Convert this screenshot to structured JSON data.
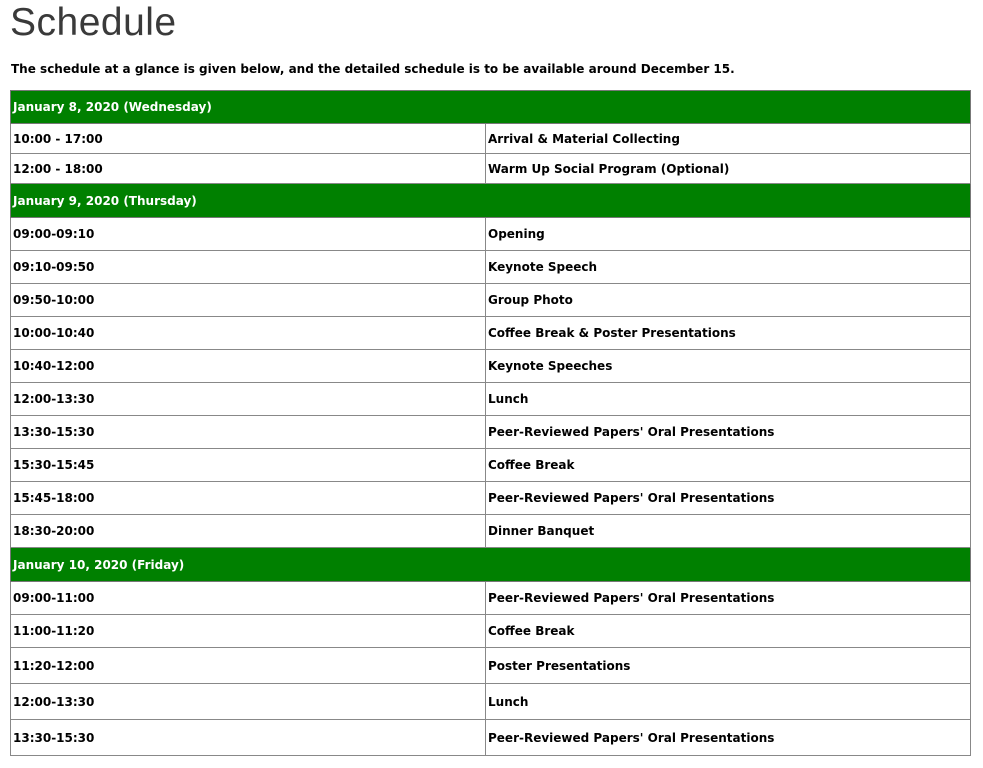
{
  "title": "Schedule",
  "intro": "The schedule at a glance is given below, and the detailed schedule is to be available around December 15.",
  "header_color": "#008000",
  "days": [
    {
      "label": "January 8, 2020 (Wednesday)",
      "rows": [
        {
          "time": "10:00 - 17:00",
          "event": "Arrival & Material Collecting"
        },
        {
          "time": "12:00 - 18:00",
          "event": "Warm Up Social Program (Optional)"
        }
      ]
    },
    {
      "label": "January 9, 2020 (Thursday)",
      "rows": [
        {
          "time": "09:00-09:10",
          "event": "Opening"
        },
        {
          "time": "09:10-09:50",
          "event": "Keynote Speech"
        },
        {
          "time": "09:50-10:00",
          "event": "Group Photo"
        },
        {
          "time": "10:00-10:40",
          "event": "Coffee Break & Poster Presentations"
        },
        {
          "time": "10:40-12:00",
          "event": "Keynote Speeches"
        },
        {
          "time": "12:00-13:30",
          "event": "Lunch"
        },
        {
          "time": "13:30-15:30",
          "event": "Peer-Reviewed Papers' Oral Presentations"
        },
        {
          "time": "15:30-15:45",
          "event": "Coffee Break"
        },
        {
          "time": "15:45-18:00",
          "event": "Peer-Reviewed Papers' Oral Presentations"
        },
        {
          "time": "18:30-20:00",
          "event": "Dinner Banquet"
        }
      ]
    },
    {
      "label": "January 10, 2020 (Friday)",
      "rows": [
        {
          "time": "09:00-11:00",
          "event": "Peer-Reviewed Papers' Oral Presentations"
        },
        {
          "time": "11:00-11:20",
          "event": "Coffee Break"
        },
        {
          "time": "11:20-12:00",
          "event": "Poster Presentations"
        },
        {
          "time": "12:00-13:30",
          "event": "Lunch"
        },
        {
          "time": "13:30-15:30",
          "event": "Peer-Reviewed Papers' Oral Presentations"
        }
      ]
    }
  ]
}
